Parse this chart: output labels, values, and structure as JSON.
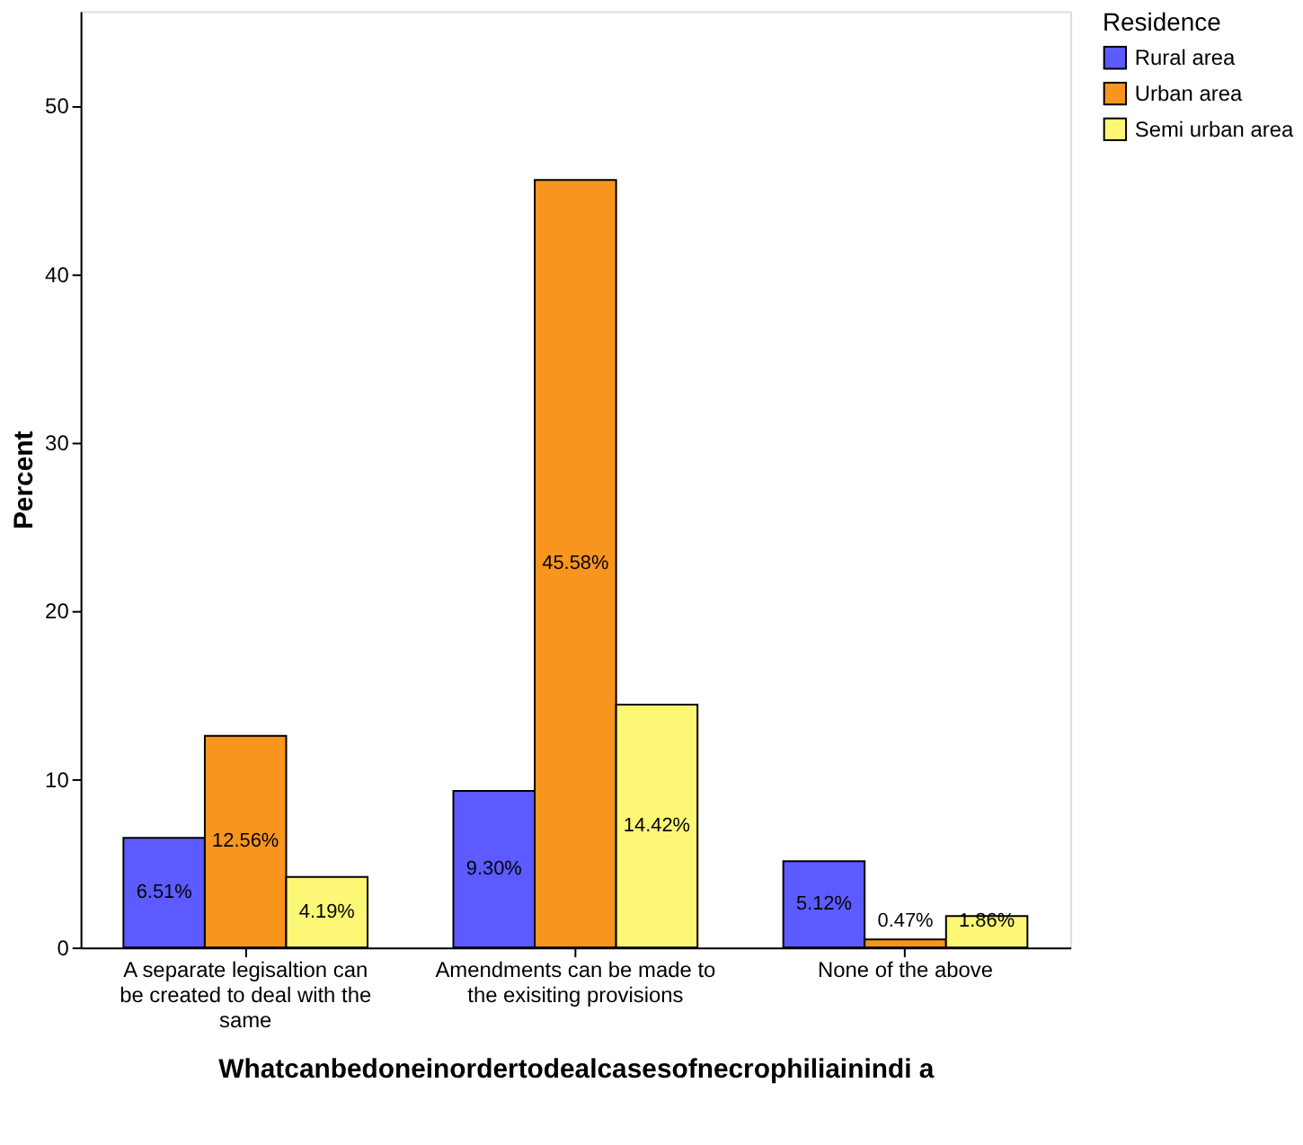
{
  "chart_data": {
    "type": "bar",
    "xlabel": "Whatcanbedoneinordertodealcasesofnecrophiliainindi a",
    "ylabel": "Percent",
    "legend_title": "Residence",
    "legend": "top right",
    "grid": false,
    "categories": [
      "A separate legisaltion can be created to deal with the same",
      "Amendments can be made to the exisiting provisions",
      "None of the above"
    ],
    "series": [
      {
        "name": "Rural area",
        "color": "#5b5bff",
        "values": [
          6.51,
          9.3,
          5.12
        ],
        "value_labels": [
          "6.51%",
          "9.30%",
          "5.12%"
        ]
      },
      {
        "name": "Urban area",
        "color": "#f7951e",
        "values": [
          12.56,
          45.58,
          0.47
        ],
        "value_labels": [
          "12.56%",
          "45.58%",
          "0.47%"
        ]
      },
      {
        "name": "Semi urban area",
        "color": "#fcf774",
        "values": [
          4.19,
          14.42,
          1.86
        ],
        "value_labels": [
          "4.19%",
          "14.42%",
          "1.86%"
        ]
      }
    ],
    "ylim": [
      0,
      55.6
    ],
    "yticks": [
      0,
      10,
      20,
      30,
      40,
      50
    ]
  }
}
